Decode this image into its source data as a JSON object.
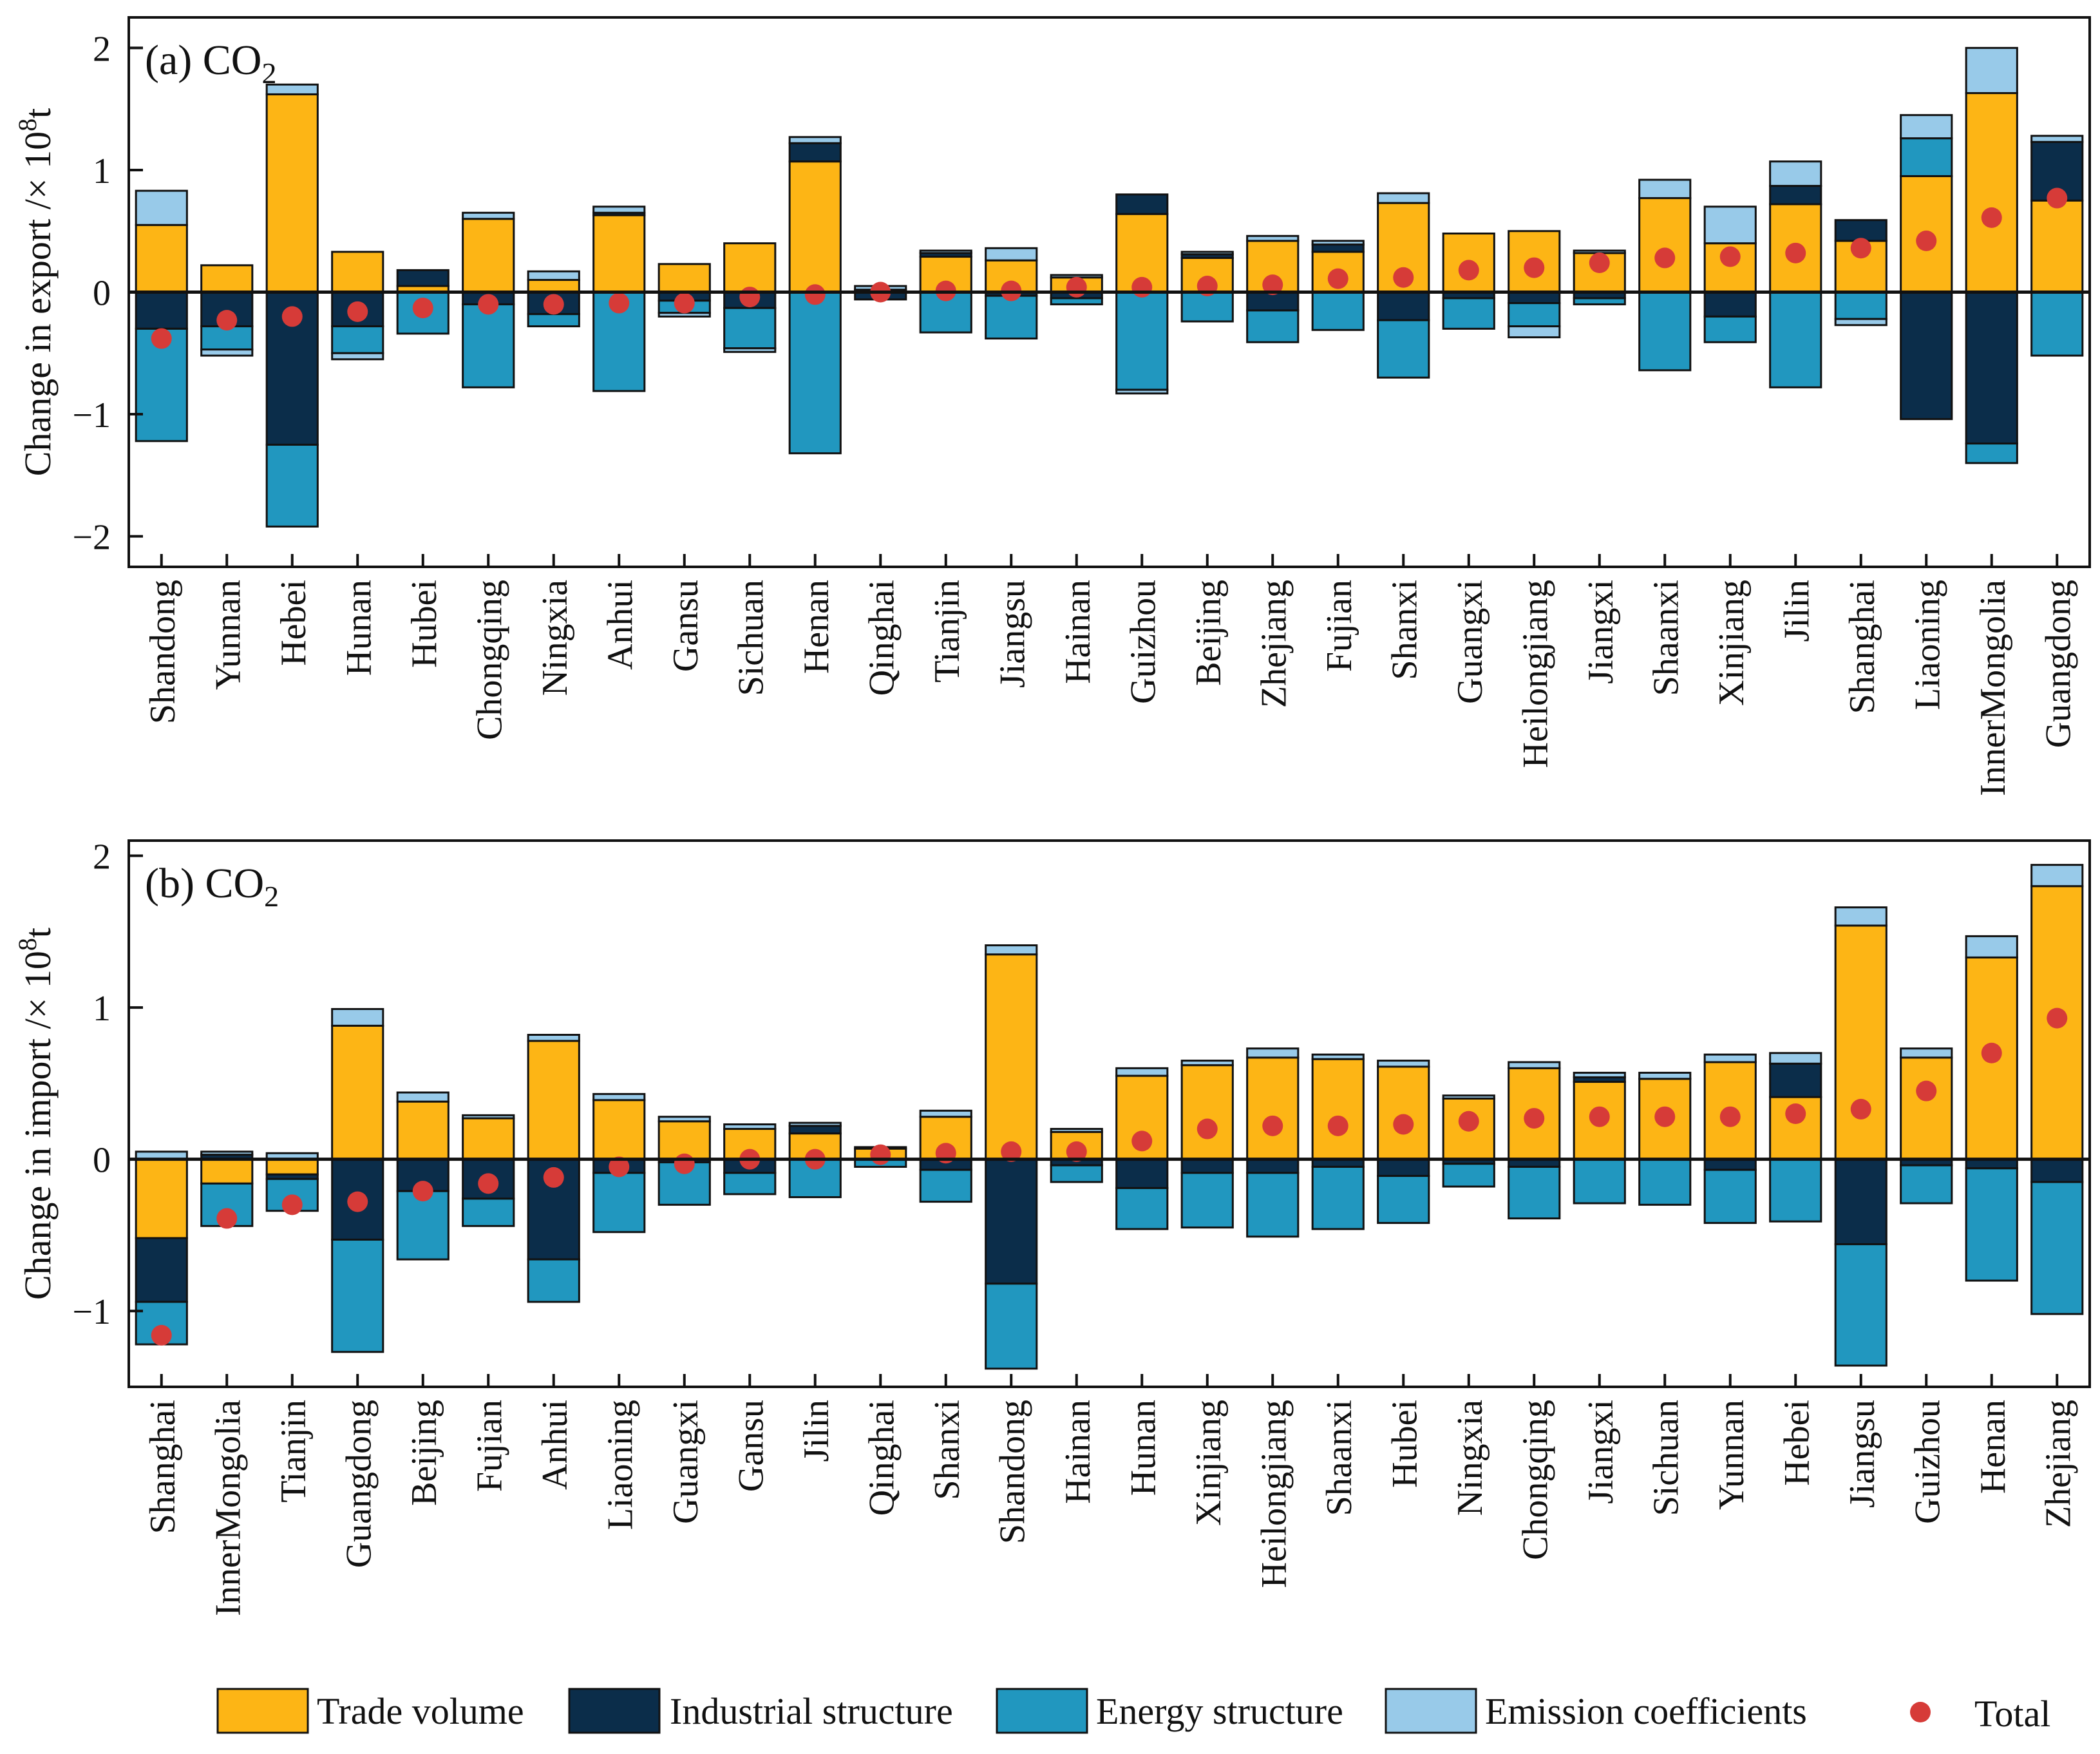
{
  "chart_data": [
    {
      "type": "bar",
      "stacked": true,
      "id": "a",
      "title": "(a) CO",
      "title_subscript": "2",
      "ylabel": "Change in export /× 10",
      "ylabel_sup": "8",
      "ylabel_unit": "t",
      "ylim": [
        -2.25,
        2.25
      ],
      "yticks": [
        -2,
        -1,
        0,
        1,
        2
      ],
      "ytick_labels": [
        "−2",
        "−1",
        "0",
        "1",
        "2"
      ],
      "categories": [
        "Shandong",
        "Yunnan",
        "Hebei",
        "Hunan",
        "Hubei",
        "Chongqing",
        "Ningxia",
        "Anhui",
        "Gansu",
        "Sichuan",
        "Henan",
        "Qinghai",
        "Tianjin",
        "Jiangsu",
        "Hainan",
        "Guizhou",
        "Beijing",
        "Zhejiang",
        "Fujian",
        "Shanxi",
        "Guangxi",
        "Heilongjiang",
        "Jiangxi",
        "Shaanxi",
        "Xinjiang",
        "Jilin",
        "Shanghai",
        "Liaoning",
        "InnerMongolia",
        "Guangdong"
      ],
      "series": [
        {
          "name": "Trade volume",
          "color": "#FDB515",
          "values": [
            0.55,
            0.22,
            1.62,
            0.33,
            0.05,
            0.6,
            0.1,
            0.63,
            0.23,
            0.4,
            1.07,
            0.02,
            0.29,
            0.26,
            0.12,
            0.64,
            0.28,
            0.42,
            0.33,
            0.73,
            0.48,
            0.5,
            0.32,
            0.77,
            0.4,
            0.72,
            0.42,
            0.95,
            1.63,
            0.75
          ]
        },
        {
          "name": "Industrial structure",
          "color": "#0B2D4A",
          "values": [
            -0.3,
            -0.28,
            -1.25,
            -0.28,
            0.13,
            -0.1,
            -0.18,
            0.02,
            -0.07,
            -0.13,
            0.15,
            -0.06,
            0.03,
            -0.03,
            -0.05,
            0.16,
            0.03,
            -0.15,
            0.06,
            -0.23,
            -0.05,
            -0.09,
            -0.05,
            0.0,
            -0.2,
            0.15,
            0.17,
            -1.04,
            -1.24,
            0.48
          ]
        },
        {
          "name": "Energy structure",
          "color": "#2197BF",
          "values": [
            -0.92,
            -0.19,
            -0.67,
            -0.22,
            -0.34,
            -0.68,
            -0.1,
            -0.81,
            -0.1,
            -0.33,
            -1.32,
            0.0,
            -0.33,
            -0.35,
            -0.05,
            -0.8,
            -0.24,
            -0.26,
            -0.31,
            -0.47,
            -0.25,
            -0.19,
            -0.05,
            -0.64,
            -0.21,
            -0.78,
            -0.22,
            0.31,
            -0.16,
            -0.52
          ]
        },
        {
          "name": "Emission coefficients",
          "color": "#98CAE9",
          "values": [
            0.28,
            -0.05,
            0.08,
            -0.05,
            0.0,
            0.05,
            0.07,
            0.05,
            -0.03,
            -0.03,
            0.05,
            0.03,
            0.02,
            0.1,
            0.02,
            -0.03,
            0.02,
            0.04,
            0.03,
            0.08,
            0.0,
            -0.09,
            0.02,
            0.15,
            0.3,
            0.2,
            -0.05,
            0.19,
            0.37,
            0.05
          ]
        },
        {
          "name": "Total",
          "color": "#D63B38",
          "values": [
            -0.38,
            -0.23,
            -0.2,
            -0.16,
            -0.13,
            -0.1,
            -0.1,
            -0.09,
            -0.09,
            -0.04,
            -0.02,
            0.0,
            0.01,
            0.01,
            0.04,
            0.04,
            0.05,
            0.06,
            0.11,
            0.12,
            0.18,
            0.2,
            0.24,
            0.28,
            0.29,
            0.32,
            0.36,
            0.42,
            0.61,
            0.77
          ]
        }
      ]
    },
    {
      "type": "bar",
      "stacked": true,
      "id": "b",
      "title": "(b) CO",
      "title_subscript": "2",
      "ylabel": "Change in import /× 10",
      "ylabel_sup": "8",
      "ylabel_unit": "t",
      "ylim": [
        -1.5,
        2.1
      ],
      "yticks": [
        -1,
        0,
        1,
        2
      ],
      "ytick_labels": [
        "−1",
        "0",
        "1",
        "2"
      ],
      "categories": [
        "Shanghai",
        "InnerMongolia",
        "Tianjin",
        "Guangdong",
        "Beijing",
        "Fujian",
        "Anhui",
        "Liaoning",
        "Guangxi",
        "Gansu",
        "Jilin",
        "Qinghai",
        "Shanxi",
        "Shandong",
        "Hainan",
        "Hunan",
        "Xinjiang",
        "Heilongjiang",
        "Shaanxi",
        "Hubei",
        "Ningxia",
        "Chongqing",
        "Jiangxi",
        "Sichuan",
        "Yunnan",
        "Hebei",
        "Jiangsu",
        "Guizhou",
        "Henan",
        "Zhejiang"
      ],
      "series": [
        {
          "name": "Trade volume",
          "color": "#FDB515",
          "values": [
            -0.52,
            -0.16,
            -0.1,
            0.88,
            0.38,
            0.27,
            0.78,
            0.39,
            0.25,
            0.2,
            0.17,
            0.07,
            0.28,
            1.35,
            0.18,
            0.55,
            0.62,
            0.67,
            0.66,
            0.61,
            0.4,
            0.6,
            0.51,
            0.53,
            0.64,
            0.41,
            1.54,
            0.67,
            1.33,
            1.8
          ]
        },
        {
          "name": "Industrial structure",
          "color": "#0B2D4A",
          "values": [
            -0.42,
            0.03,
            -0.03,
            -0.53,
            -0.21,
            -0.26,
            -0.66,
            -0.09,
            -0.02,
            -0.09,
            0.05,
            0.0,
            -0.07,
            -0.82,
            -0.04,
            -0.19,
            -0.09,
            -0.09,
            -0.05,
            -0.11,
            -0.03,
            -0.05,
            0.03,
            0.0,
            -0.07,
            0.22,
            -0.56,
            -0.04,
            -0.06,
            -0.15
          ]
        },
        {
          "name": "Energy structure",
          "color": "#2197BF",
          "values": [
            -0.28,
            -0.28,
            -0.21,
            -0.74,
            -0.45,
            -0.18,
            -0.28,
            -0.39,
            -0.28,
            -0.14,
            -0.25,
            -0.05,
            -0.21,
            -0.56,
            -0.11,
            -0.27,
            -0.36,
            -0.42,
            -0.41,
            -0.31,
            -0.15,
            -0.34,
            -0.29,
            -0.3,
            -0.35,
            -0.41,
            -0.8,
            -0.25,
            -0.74,
            -0.87
          ]
        },
        {
          "name": "Emission coefficients",
          "color": "#98CAE9",
          "values": [
            0.05,
            0.02,
            0.04,
            0.11,
            0.06,
            0.02,
            0.04,
            0.04,
            0.03,
            0.03,
            0.02,
            0.01,
            0.04,
            0.06,
            0.02,
            0.05,
            0.03,
            0.06,
            0.03,
            0.04,
            0.02,
            0.04,
            0.03,
            0.04,
            0.05,
            0.07,
            0.12,
            0.06,
            0.14,
            0.14
          ]
        },
        {
          "name": "Total",
          "color": "#D63B38",
          "values": [
            -1.16,
            -0.39,
            -0.3,
            -0.28,
            -0.21,
            -0.16,
            -0.12,
            -0.05,
            -0.03,
            0.0,
            0.0,
            0.03,
            0.04,
            0.05,
            0.05,
            0.12,
            0.2,
            0.22,
            0.22,
            0.23,
            0.25,
            0.27,
            0.28,
            0.28,
            0.28,
            0.3,
            0.33,
            0.45,
            0.7,
            0.93
          ]
        }
      ]
    }
  ],
  "legend": {
    "position": "bottom",
    "items": [
      {
        "label": "Trade volume",
        "color": "#FDB515",
        "shape": "rect"
      },
      {
        "label": "Industrial structure",
        "color": "#0B2D4A",
        "shape": "rect"
      },
      {
        "label": "Energy structure",
        "color": "#2197BF",
        "shape": "rect"
      },
      {
        "label": "Emission coefficients",
        "color": "#98CAE9",
        "shape": "rect"
      },
      {
        "label": "Total",
        "color": "#D63B38",
        "shape": "circle"
      }
    ]
  }
}
